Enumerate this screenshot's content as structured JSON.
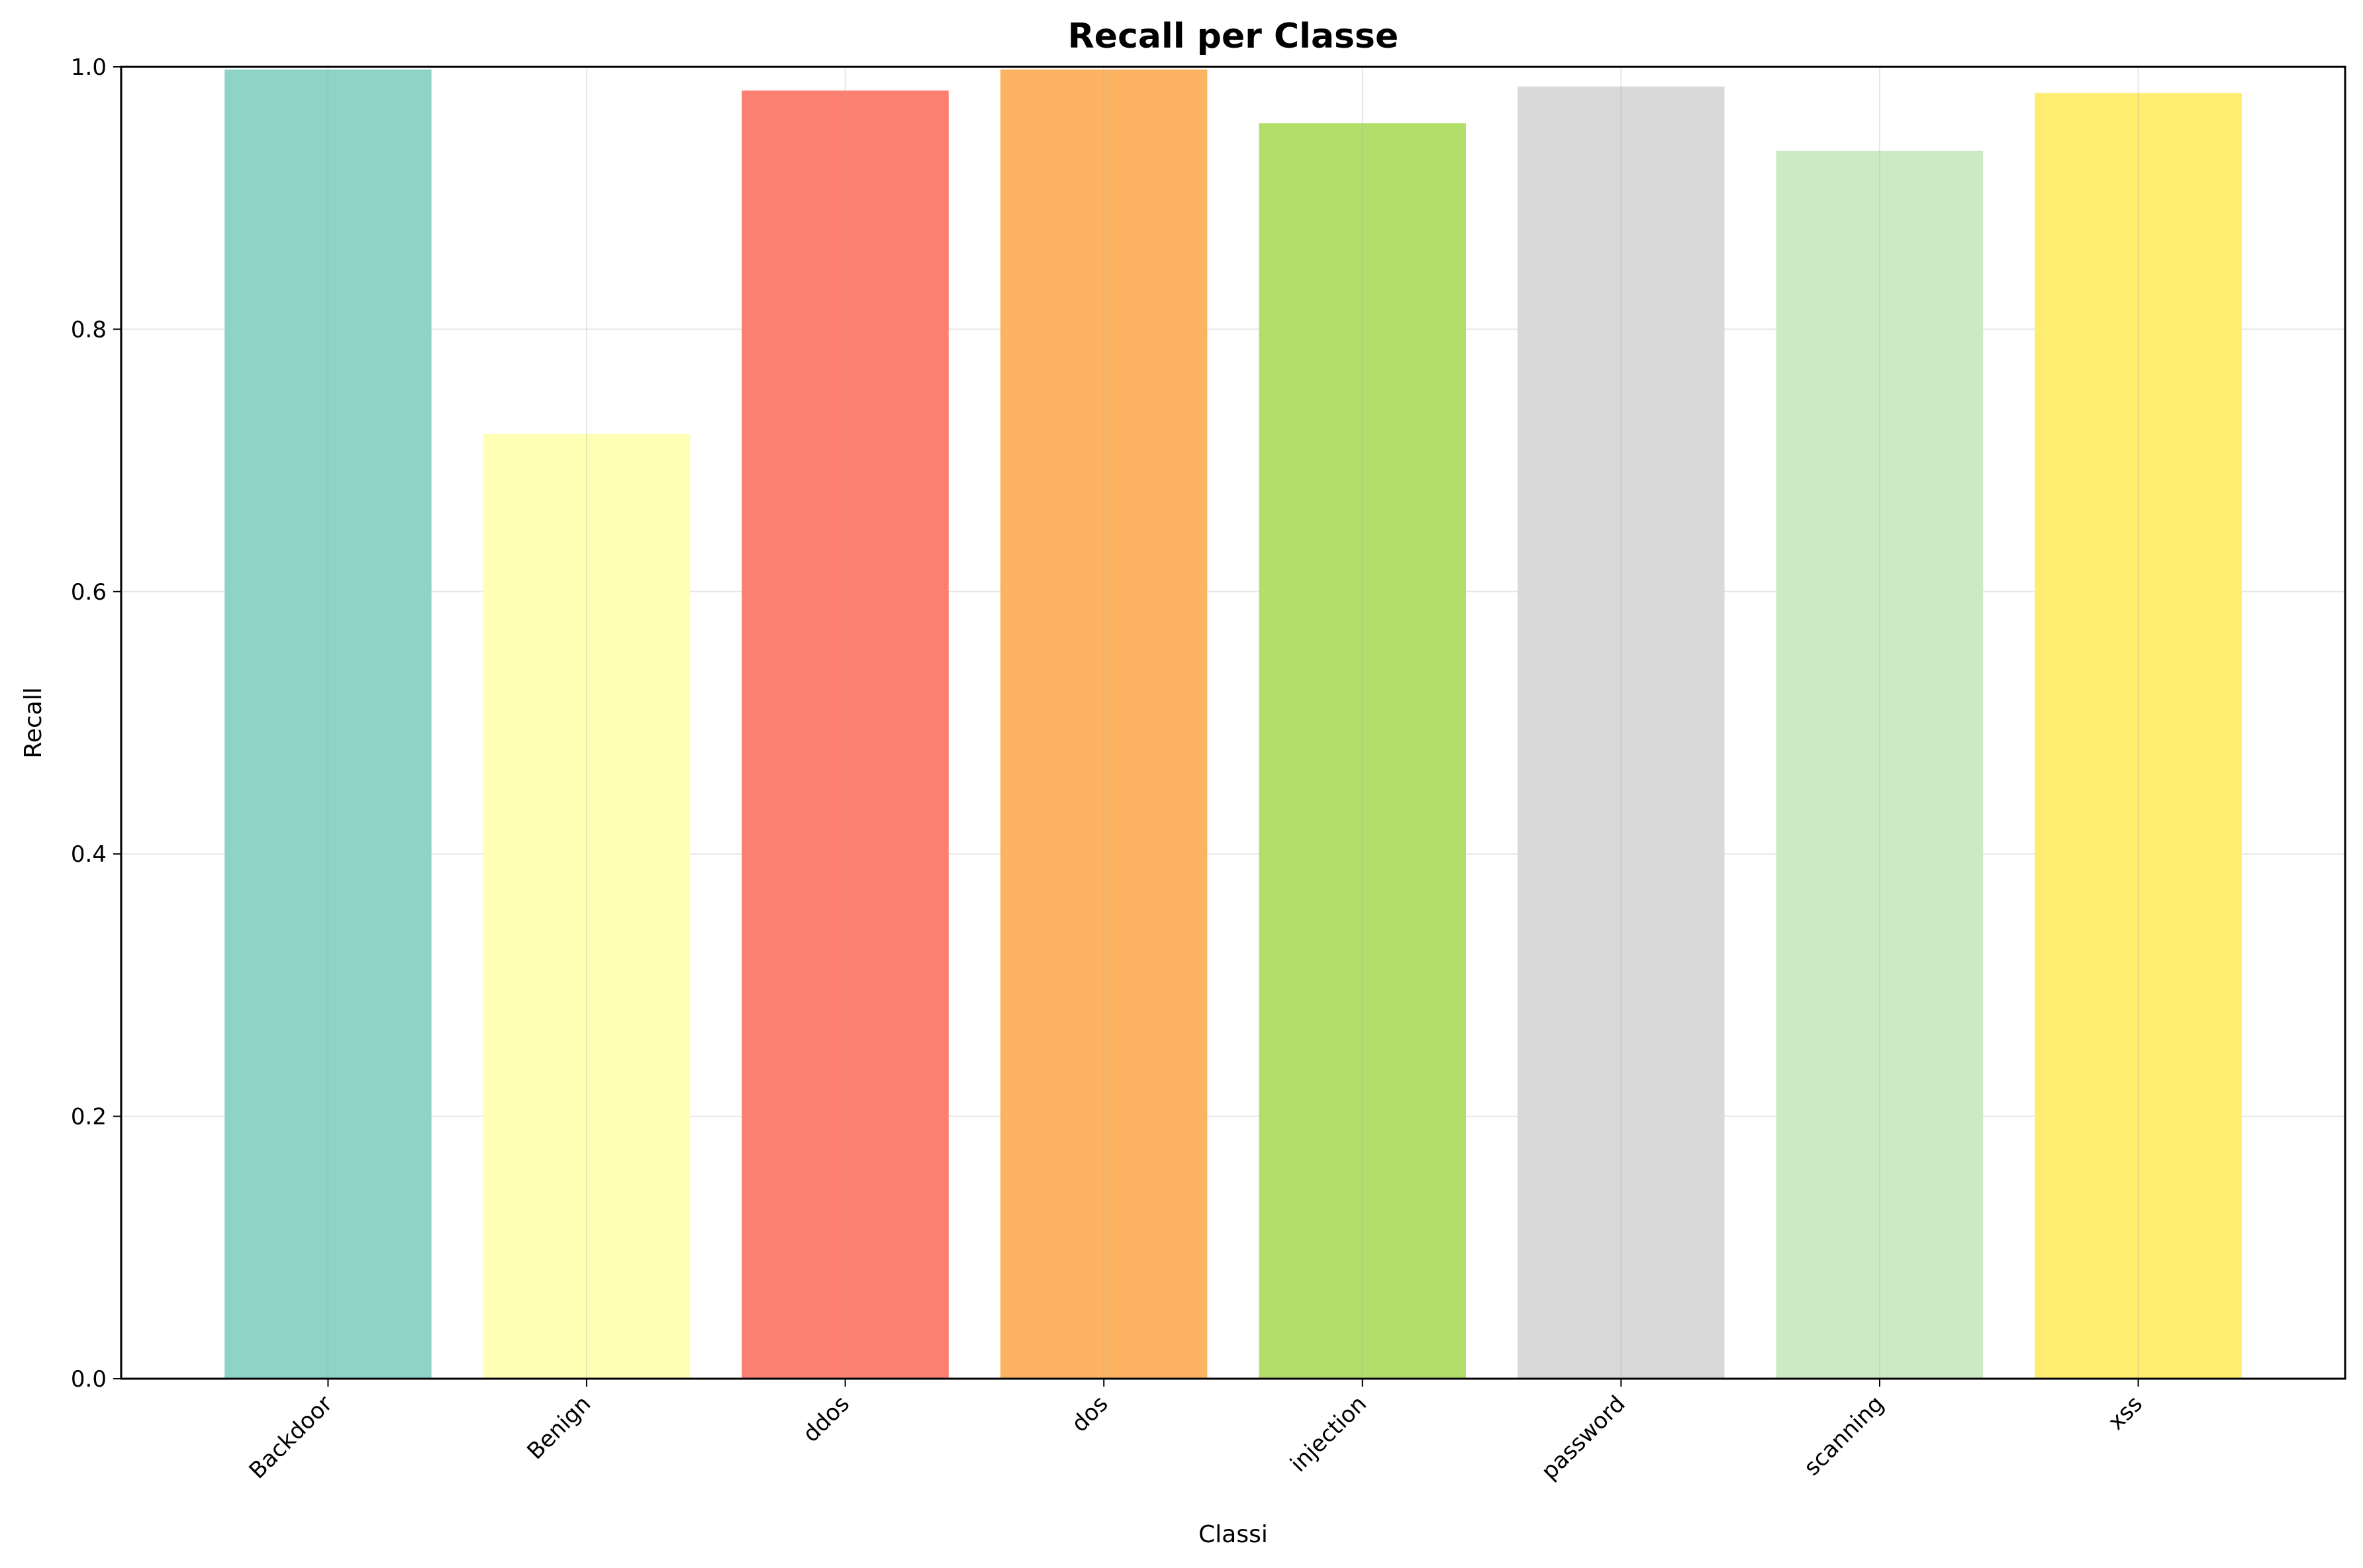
{
  "chart_data": {
    "type": "bar",
    "title": "Recall per Classe",
    "xlabel": "Classi",
    "ylabel": "Recall",
    "categories": [
      "Backdoor",
      "Benign",
      "ddos",
      "dos",
      "injection",
      "password",
      "scanning",
      "xss"
    ],
    "values": [
      0.998,
      0.72,
      0.982,
      0.998,
      0.957,
      0.985,
      0.936,
      0.98
    ],
    "colors": [
      "#8dd3c7",
      "#ffffb3",
      "#fb8072",
      "#fdb462",
      "#b3de69",
      "#d9d9d9",
      "#ccebc5",
      "#ffed6f"
    ],
    "ylim": [
      0,
      1.0
    ],
    "yticks": [
      "0.0",
      "0.2",
      "0.4",
      "0.6",
      "0.8",
      "1.0"
    ],
    "grid": true,
    "xtick_rotation": -45
  }
}
